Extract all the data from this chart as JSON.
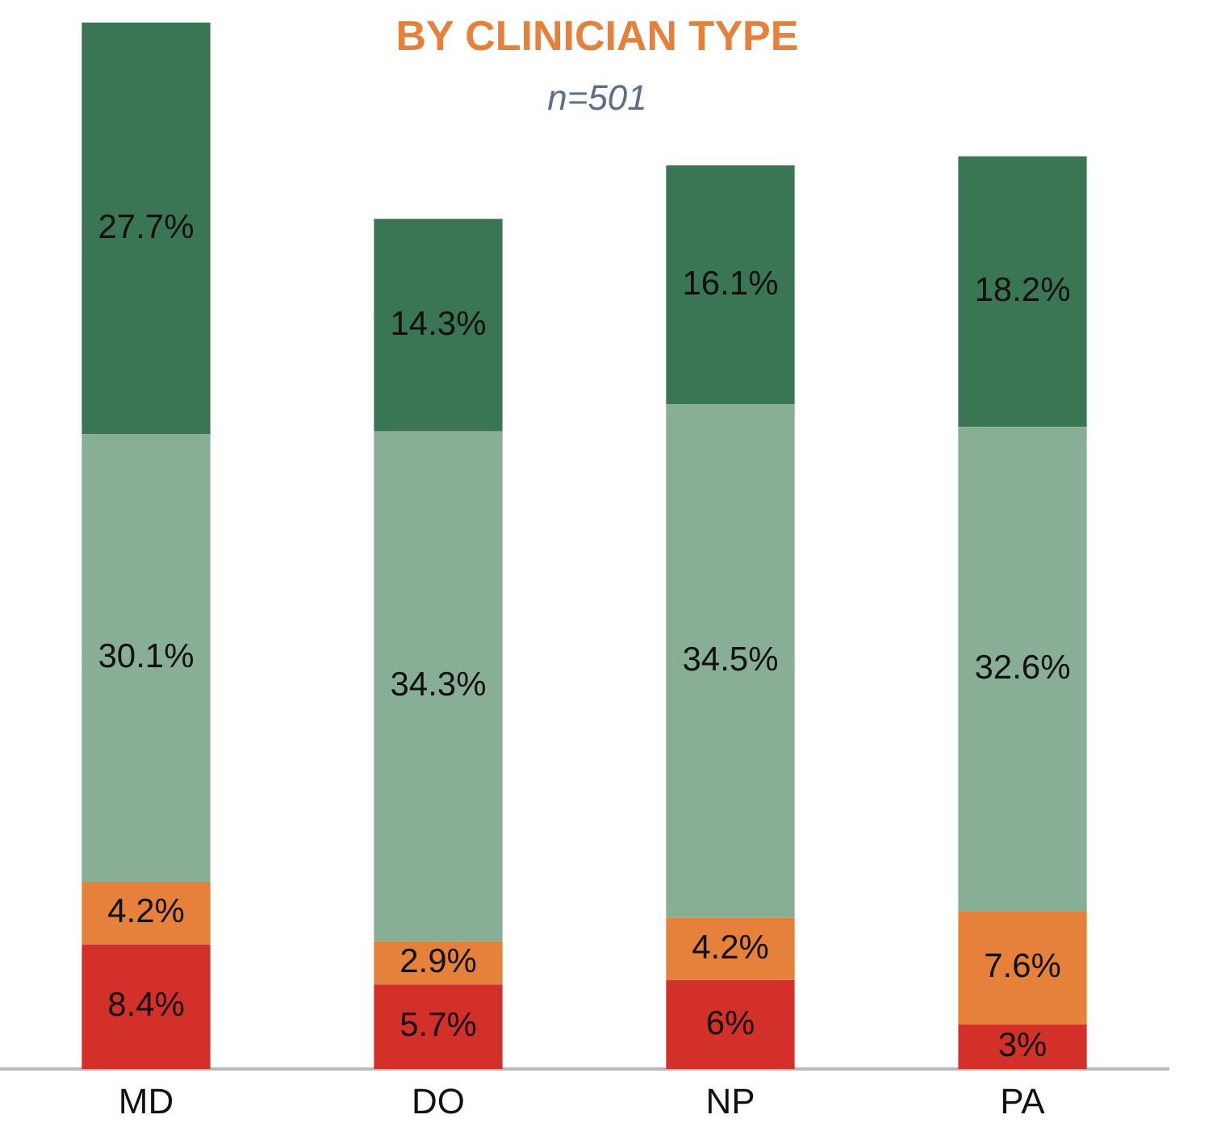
{
  "chart_data": {
    "type": "bar",
    "title": "BY CLINICIAN TYPE",
    "subtitle": "n=501",
    "categories": [
      "MD",
      "DO",
      "NP",
      "PA"
    ],
    "stacked": true,
    "series": [
      {
        "color": "#d3302a",
        "values": [
          8.4,
          5.7,
          6,
          3
        ],
        "value_labels": [
          "8.4%",
          "5.7%",
          "6%",
          "3%"
        ]
      },
      {
        "color": "#e5813a",
        "values": [
          4.2,
          2.9,
          4.2,
          7.6
        ],
        "value_labels": [
          "4.2%",
          "2.9%",
          "4.2%",
          "7.6%"
        ]
      },
      {
        "color": "#88ae96",
        "values": [
          30.1,
          34.3,
          34.5,
          32.6
        ],
        "value_labels": [
          "30.1%",
          "34.3%",
          "34.5%",
          "32.6%"
        ]
      },
      {
        "color": "#3a7653",
        "values": [
          27.7,
          14.3,
          16.1,
          18.2
        ],
        "value_labels": [
          "27.7%",
          "14.3%",
          "16.1%",
          "18.2%"
        ]
      }
    ]
  }
}
